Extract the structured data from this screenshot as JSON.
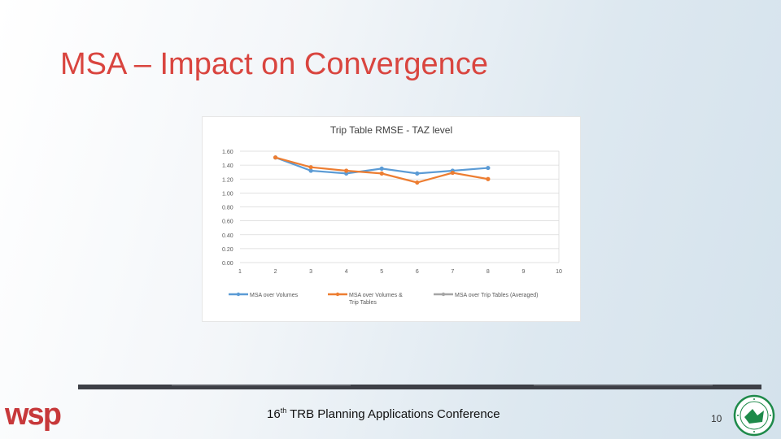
{
  "slide": {
    "title": "MSA – Impact on Convergence",
    "conference_prefix": "16",
    "conference_sup": "th",
    "conference_suffix": " TRB Planning Applications Conference",
    "page_number": "10",
    "logo_text": "wsp"
  },
  "colors": {
    "title": "#d9453f",
    "logo": "#c7383a",
    "seal": "#1e8a4a"
  },
  "chart_data": {
    "type": "line",
    "title": "Trip Table RMSE - TAZ level",
    "xlabel": "",
    "ylabel": "",
    "x": [
      1,
      2,
      3,
      4,
      5,
      6,
      7,
      8,
      9,
      10
    ],
    "x_tick_labels": [
      "1",
      "2",
      "3",
      "4",
      "5",
      "6",
      "7",
      "8",
      "9",
      "10"
    ],
    "y_tick_labels": [
      "0.00",
      "0.20",
      "0.40",
      "0.60",
      "0.80",
      "1.00",
      "1.20",
      "1.40",
      "1.60"
    ],
    "ylim": [
      0,
      1.6
    ],
    "grid": true,
    "legend_position": "bottom",
    "series": [
      {
        "name": "MSA over Volumes",
        "color": "#5b9bd5",
        "x": [
          2,
          3,
          4,
          5,
          6,
          7,
          8
        ],
        "values": [
          1.51,
          1.32,
          1.28,
          1.35,
          1.28,
          1.32,
          1.36
        ]
      },
      {
        "name": "MSA over Volumes & Trip Tables",
        "color": "#ed7d31",
        "x": [
          2,
          3,
          4,
          5,
          6,
          7,
          8
        ],
        "values": [
          1.51,
          1.37,
          1.32,
          1.28,
          1.15,
          1.29,
          1.2
        ]
      },
      {
        "name": "MSA over Trip Tables (Averaged)",
        "color": "#a5a5a5",
        "x": [],
        "values": []
      }
    ]
  }
}
